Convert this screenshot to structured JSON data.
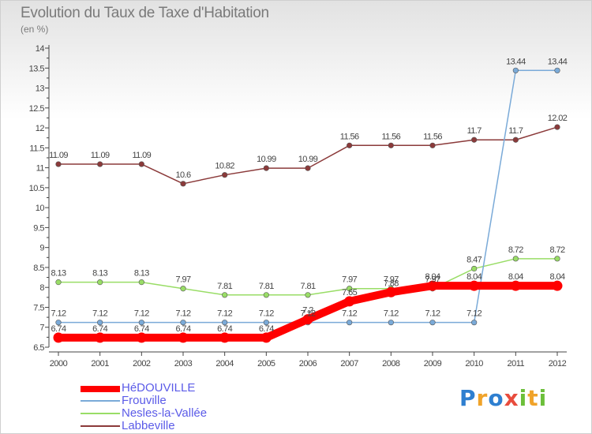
{
  "header": {
    "title": "Evolution du Taux de Taxe d'Habitation",
    "subtitle": "(en %)"
  },
  "logo": {
    "p": "P",
    "r": "r",
    "o": "o",
    "x": "x",
    "i1": "i",
    "t": "t",
    "i2": "i"
  },
  "chart_data": {
    "type": "line",
    "x": [
      "2000",
      "2001",
      "2002",
      "2003",
      "2004",
      "2005",
      "2006",
      "2007",
      "2008",
      "2009",
      "2010",
      "2011",
      "2012"
    ],
    "ylim": [
      6.5,
      14
    ],
    "yticks": [
      "6.5",
      "7",
      "7.5",
      "8",
      "8.5",
      "9",
      "9.5",
      "10",
      "10.5",
      "11",
      "11.5",
      "12",
      "12.5",
      "13",
      "13.5",
      "14"
    ],
    "grid": false,
    "legend_position": "bottom-left",
    "series": [
      {
        "name": "HéDOUVILLE",
        "color": "#ff0000",
        "values": [
          6.74,
          6.74,
          6.74,
          6.74,
          6.74,
          6.74,
          7.2,
          7.65,
          7.88,
          8.04,
          8.04,
          8.04,
          8.04
        ],
        "labels": [
          "6.74",
          "6.74",
          "6.74",
          "6.74",
          "6.74",
          "6.74",
          "7.2",
          "7.65",
          "7.88",
          "8.04",
          "8.04",
          "8.04",
          "8.04"
        ]
      },
      {
        "name": "Frouville",
        "color": "#7aaad8",
        "values": [
          7.12,
          7.12,
          7.12,
          7.12,
          7.12,
          7.12,
          7.12,
          7.12,
          7.12,
          7.12,
          7.12,
          13.44,
          13.44
        ],
        "labels": [
          "7.12",
          "7.12",
          "7.12",
          "7.12",
          "7.12",
          "7.12",
          "7.12",
          "7.12",
          "7.12",
          "7.12",
          "7.12",
          "13.44",
          "13.44"
        ]
      },
      {
        "name": "Nesles-la-Vallée",
        "color": "#99dd66",
        "values": [
          8.13,
          8.13,
          8.13,
          7.97,
          7.81,
          7.81,
          7.81,
          7.97,
          7.97,
          7.97,
          8.47,
          8.72,
          8.72
        ],
        "labels": [
          "8.13",
          "8.13",
          "8.13",
          "7.97",
          "7.81",
          "7.81",
          "7.81",
          "7.97",
          "7.97",
          "7.97",
          "8.47",
          "8.72",
          "8.72"
        ]
      },
      {
        "name": "Labbeville",
        "color": "#8b3a3a",
        "values": [
          11.09,
          11.09,
          11.09,
          10.6,
          10.82,
          10.99,
          10.99,
          11.56,
          11.56,
          11.56,
          11.7,
          11.7,
          12.02
        ],
        "labels": [
          "11.09",
          "11.09",
          "11.09",
          "10.6",
          "10.82",
          "10.99",
          "10.99",
          "11.56",
          "11.56",
          "11.56",
          "11.7",
          "11.7",
          "12.02"
        ]
      }
    ]
  }
}
